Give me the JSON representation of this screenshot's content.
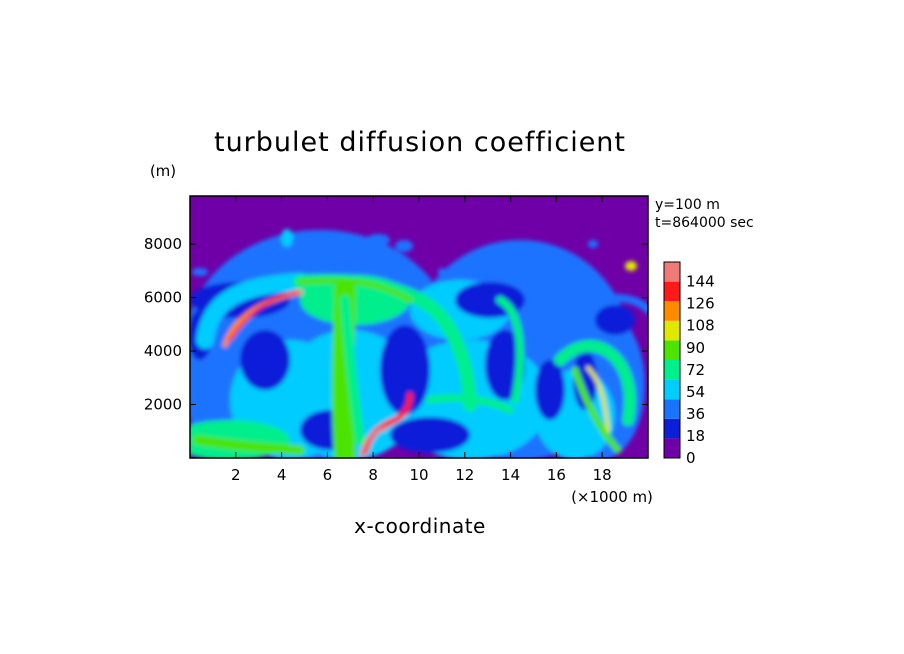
{
  "chart_data": {
    "type": "heatmap",
    "title": "turbulet diffusion coefficient",
    "xlabel": "x-coordinate",
    "x_unit_label": "(×1000 m)",
    "y_unit_label": "(m)",
    "annotations": [
      "y=100 m",
      "t=864000 sec"
    ],
    "xlim": [
      0,
      20
    ],
    "ylim": [
      0,
      9800
    ],
    "x_ticks": [
      2,
      4,
      6,
      8,
      10,
      12,
      14,
      16,
      18
    ],
    "y_ticks": [
      2000,
      4000,
      6000,
      8000
    ],
    "colorbar": {
      "levels": [
        0,
        18,
        36,
        54,
        72,
        90,
        108,
        126,
        144
      ],
      "colors": [
        "#6f00a8",
        "#0b1fd8",
        "#1a73ff",
        "#00ccff",
        "#00ee8c",
        "#4ce400",
        "#e0e800",
        "#ff8a00",
        "#ff1a1a",
        "#f07a78"
      ]
    },
    "background_value": 0
  }
}
